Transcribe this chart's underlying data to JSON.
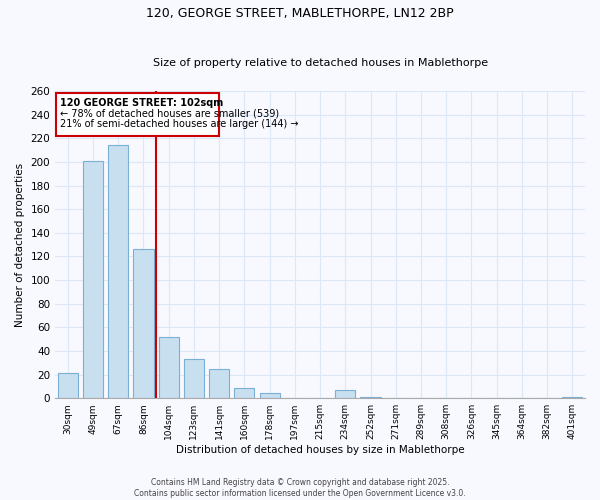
{
  "title_line1": "120, GEORGE STREET, MABLETHORPE, LN12 2BP",
  "title_line2": "Size of property relative to detached houses in Mablethorpe",
  "xlabel": "Distribution of detached houses by size in Mablethorpe",
  "ylabel": "Number of detached properties",
  "bar_labels": [
    "30sqm",
    "49sqm",
    "67sqm",
    "86sqm",
    "104sqm",
    "123sqm",
    "141sqm",
    "160sqm",
    "178sqm",
    "197sqm",
    "215sqm",
    "234sqm",
    "252sqm",
    "271sqm",
    "289sqm",
    "308sqm",
    "326sqm",
    "345sqm",
    "364sqm",
    "382sqm",
    "401sqm"
  ],
  "bar_values": [
    21,
    201,
    214,
    126,
    52,
    33,
    25,
    9,
    4,
    0,
    0,
    7,
    1,
    0,
    0,
    0,
    0,
    0,
    0,
    0,
    1
  ],
  "bar_color": "#c8dff0",
  "bar_edge_color": "#7ab0d4",
  "annotation_text_line1": "120 GEORGE STREET: 102sqm",
  "annotation_text_line2": "← 78% of detached houses are smaller (539)",
  "annotation_text_line3": "21% of semi-detached houses are larger (144) →",
  "annotation_box_color": "#ffffff",
  "annotation_box_edge_color": "#cc0000",
  "vline_color": "#cc0000",
  "ylim": [
    0,
    260
  ],
  "yticks": [
    0,
    20,
    40,
    60,
    80,
    100,
    120,
    140,
    160,
    180,
    200,
    220,
    240,
    260
  ],
  "footer_line1": "Contains HM Land Registry data © Crown copyright and database right 2025.",
  "footer_line2": "Contains public sector information licensed under the Open Government Licence v3.0.",
  "background_color": "#f8f8ff",
  "grid_color": "#dce8f5"
}
